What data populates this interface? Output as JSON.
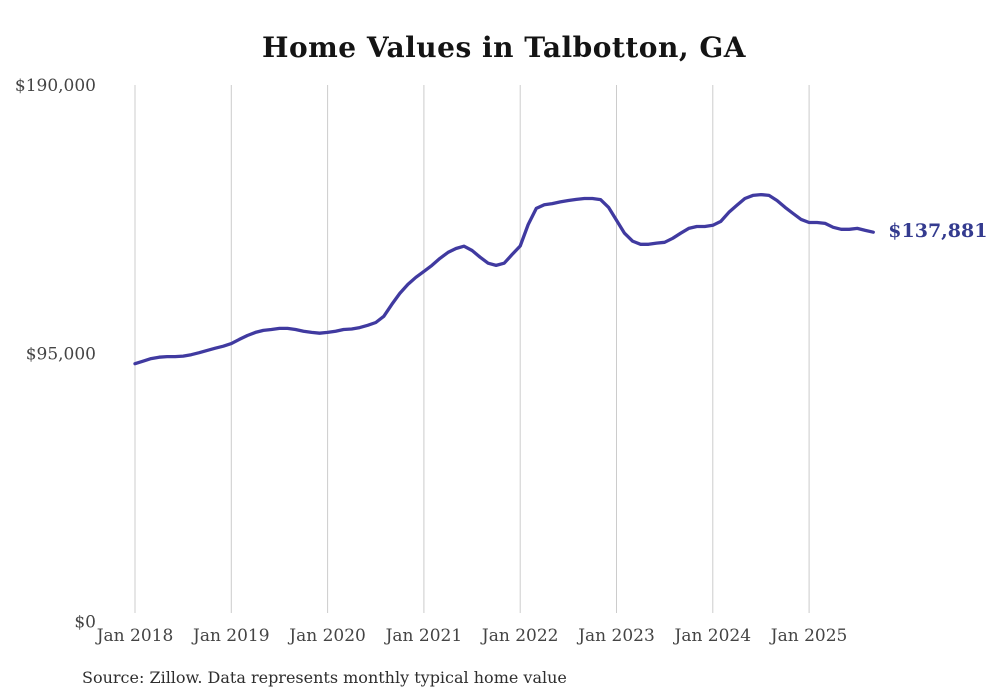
{
  "title": "Home Values in Talbotton, GA",
  "source_note": "Source: Zillow. Data represents monthly typical home value",
  "colors": {
    "line": "#403aa0",
    "end_label": "#343b8f",
    "gridline": "#cccccc",
    "tick_label": "#444444",
    "title": "#141414",
    "background": "#ffffff"
  },
  "chart_data": {
    "type": "line",
    "title": "Home Values in Talbotton, GA",
    "xlabel": "",
    "ylabel": "",
    "x_tick_labels": [
      "Jan 2018",
      "Jan 2019",
      "Jan 2020",
      "Jan 2021",
      "Jan 2022",
      "Jan 2023",
      "Jan 2024",
      "Jan 2025"
    ],
    "y_ticks": [
      {
        "label": "$0",
        "value": 0
      },
      {
        "label": "$95,000",
        "value": 95000
      },
      {
        "label": "$190,000",
        "value": 190000
      }
    ],
    "ylim": [
      0,
      190000
    ],
    "grid": "vertical-only",
    "legend": "none",
    "series": [
      {
        "name": "Monthly typical home value",
        "interval": "monthly",
        "start": "Jan 2018",
        "end": "Sep 2025",
        "values": [
          91300,
          92200,
          93100,
          93600,
          93800,
          93800,
          94000,
          94500,
          95200,
          96000,
          96800,
          97500,
          98400,
          99900,
          101300,
          102400,
          103100,
          103400,
          103800,
          103800,
          103400,
          102800,
          102400,
          102100,
          102400,
          102800,
          103400,
          103600,
          104100,
          104900,
          105900,
          108100,
          112300,
          116200,
          119400,
          121900,
          124000,
          126100,
          128600,
          130700,
          132100,
          132900,
          131400,
          129000,
          126900,
          126100,
          126900,
          130000,
          133000,
          140600,
          146300,
          147600,
          148000,
          148600,
          149100,
          149500,
          149800,
          149800,
          149400,
          146700,
          142100,
          137500,
          134700,
          133600,
          133600,
          134000,
          134300,
          135700,
          137500,
          139200,
          139900,
          139900,
          140300,
          141700,
          144900,
          147400,
          149800,
          150900,
          151200,
          150900,
          149100,
          146700,
          144500,
          142400,
          141300,
          141300,
          141000,
          139600,
          138900,
          138900,
          139200,
          138500,
          137881
        ]
      }
    ],
    "end_annotation": {
      "label": "$137,881",
      "value": 137881
    }
  }
}
